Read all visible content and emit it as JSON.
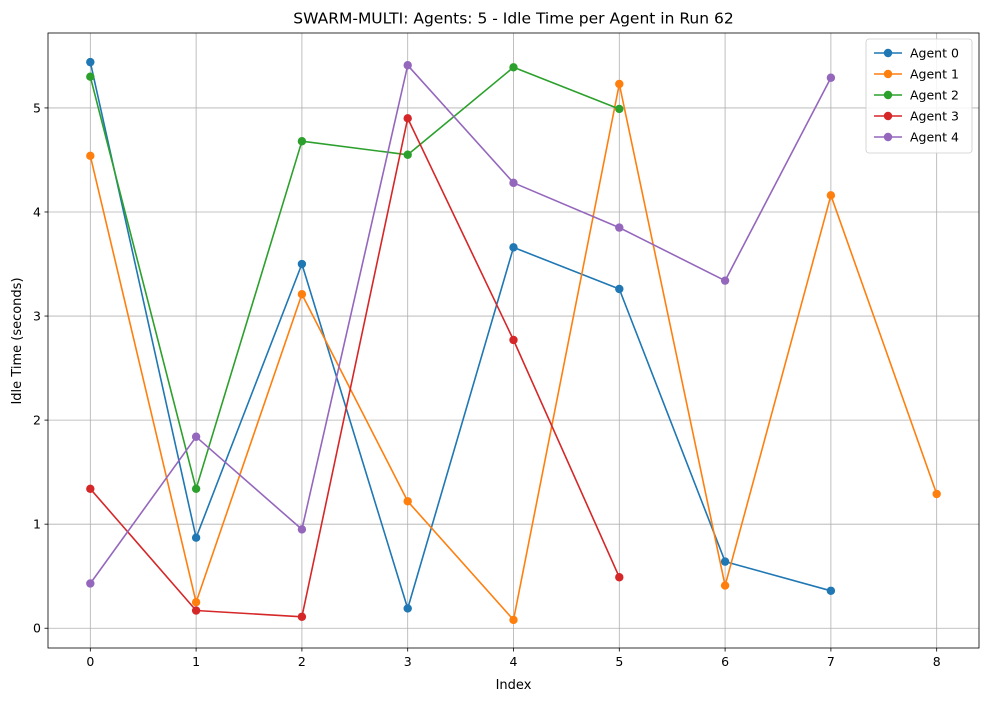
{
  "chart_data": {
    "type": "line",
    "title": "SWARM-MULTI: Agents: 5 - Idle Time per Agent in Run 62",
    "xlabel": "Index",
    "ylabel": "Idle Time (seconds)",
    "xlim": [
      -0.4,
      8.4
    ],
    "ylim": [
      -0.19,
      5.72
    ],
    "xticks": [
      0,
      1,
      2,
      3,
      4,
      5,
      6,
      7,
      8
    ],
    "yticks": [
      0,
      1,
      2,
      3,
      4,
      5
    ],
    "grid": true,
    "legend_position": "top-right",
    "series": [
      {
        "name": "Agent 0",
        "color": "#1f77b4",
        "x": [
          0,
          1,
          2,
          3,
          4,
          5,
          6,
          7
        ],
        "y": [
          5.44,
          0.87,
          3.5,
          0.19,
          3.66,
          3.26,
          0.64,
          0.36
        ]
      },
      {
        "name": "Agent 1",
        "color": "#ff7f0e",
        "x": [
          0,
          1,
          2,
          3,
          4,
          5,
          6,
          7,
          8
        ],
        "y": [
          4.54,
          0.25,
          3.21,
          1.22,
          0.08,
          5.23,
          0.41,
          4.16,
          1.29
        ]
      },
      {
        "name": "Agent 2",
        "color": "#2ca02c",
        "x": [
          0,
          1,
          2,
          3,
          4,
          5
        ],
        "y": [
          5.3,
          1.34,
          4.68,
          4.55,
          5.39,
          4.99
        ]
      },
      {
        "name": "Agent 3",
        "color": "#d62728",
        "x": [
          0,
          1,
          2,
          3,
          4,
          5
        ],
        "y": [
          1.34,
          0.17,
          0.11,
          4.9,
          2.77,
          0.49
        ]
      },
      {
        "name": "Agent 4",
        "color": "#9467bd",
        "x": [
          0,
          1,
          2,
          3,
          4,
          5,
          6,
          7
        ],
        "y": [
          0.43,
          1.84,
          0.95,
          5.41,
          4.28,
          3.85,
          3.34,
          5.29
        ]
      }
    ]
  }
}
